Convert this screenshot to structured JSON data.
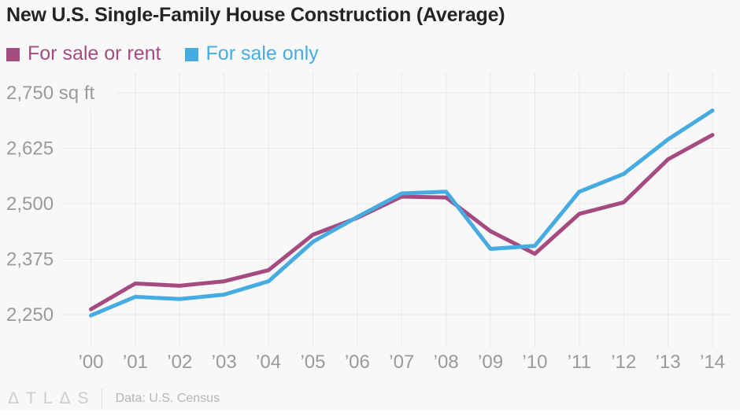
{
  "title": "New U.S. Single-Family House Construction (Average)",
  "footer": {
    "logo": "ΔTLΔS",
    "source": "Data: U.S. Census"
  },
  "colors": {
    "background": "#f8f8f8",
    "grid": "#e8e8e8",
    "title_text": "#242424",
    "axis_label": "#9a9a9a",
    "footer_logo": "#cccccc",
    "footer_text": "#b5b5b5",
    "series_purple": "#a54b80",
    "series_blue": "#46abe0"
  },
  "chart_data": {
    "type": "line",
    "title": "New U.S. Single-Family House Construction (Average)",
    "x": [
      "’00",
      "’01",
      "’02",
      "’03",
      "’04",
      "’05",
      "’06",
      "’07",
      "’08",
      "’09",
      "’10",
      "’11",
      "’12",
      "’13",
      "’14"
    ],
    "series": [
      {
        "name": "For sale or rent",
        "color": "#a54b80",
        "values": [
          2262,
          2320,
          2315,
          2325,
          2350,
          2430,
          2468,
          2516,
          2514,
          2438,
          2387,
          2477,
          2503,
          2600,
          2655
        ]
      },
      {
        "name": "For sale only",
        "color": "#46abe0",
        "values": [
          2248,
          2290,
          2285,
          2295,
          2325,
          2414,
          2470,
          2523,
          2527,
          2398,
          2405,
          2527,
          2567,
          2645,
          2710
        ]
      }
    ],
    "y_ticks": [
      {
        "value": 2750,
        "label": "2,750 sq ft"
      },
      {
        "value": 2625,
        "label": "2,625"
      },
      {
        "value": 2500,
        "label": "2,500"
      },
      {
        "value": 2375,
        "label": "2,375"
      },
      {
        "value": 2250,
        "label": "2,250"
      }
    ],
    "ylabel_unit": "sq ft",
    "ylim": [
      2250,
      2750
    ],
    "grid": true,
    "legend_position": "top-left"
  }
}
